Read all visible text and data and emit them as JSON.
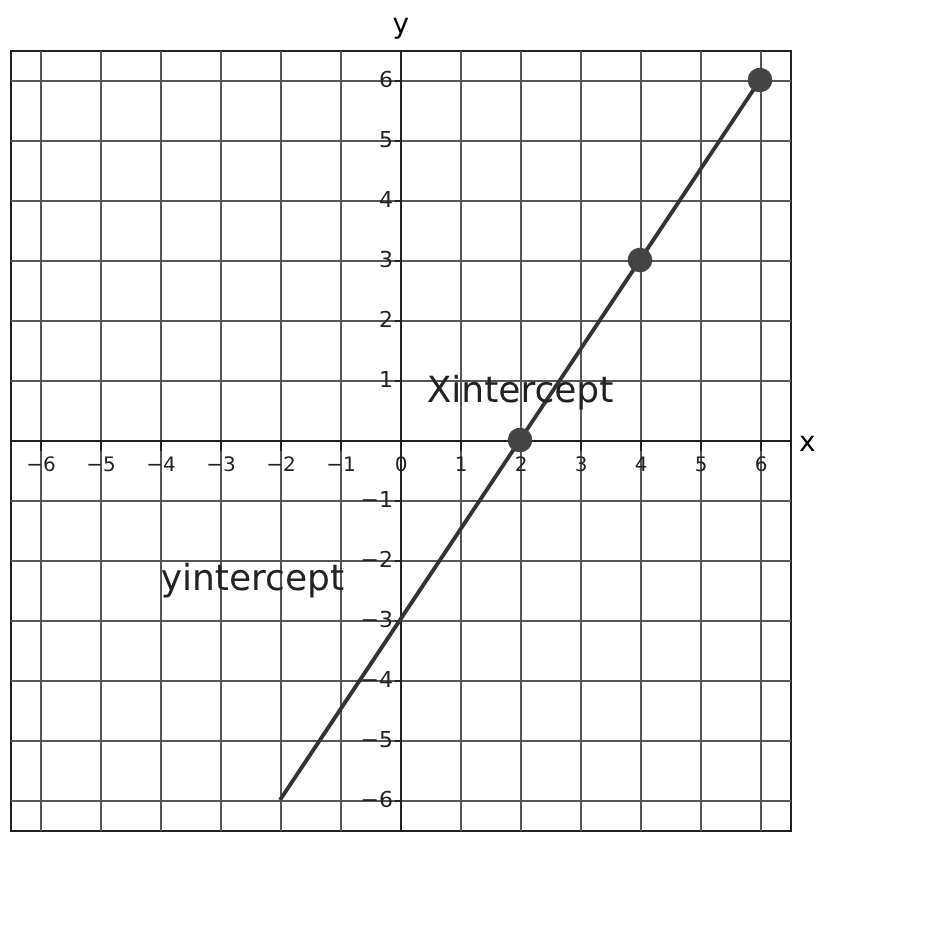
{
  "chart_data": {
    "type": "line",
    "xlabel": "x",
    "ylabel": "y",
    "xlim": [
      -6.5,
      6.5
    ],
    "ylim": [
      -6.5,
      6.5
    ],
    "xticks": [
      -6,
      -5,
      -4,
      -3,
      -2,
      -1,
      0,
      1,
      2,
      3,
      4,
      5,
      6
    ],
    "yticks": [
      -6,
      -5,
      -4,
      -3,
      -2,
      -1,
      {
        "value": 0,
        "label": null
      },
      1,
      2,
      3,
      4,
      5,
      6
    ],
    "grid": true,
    "line_style": "solid",
    "series": [
      {
        "color": "#333333",
        "x": [
          -2,
          6
        ],
        "values": [
          -6,
          6
        ],
        "marker": "none"
      },
      {
        "type": "scatter",
        "color": "#444444",
        "x": [
          2,
          4,
          6
        ],
        "values": [
          0,
          3,
          6
        ],
        "marker": "circle"
      }
    ],
    "annotations": [
      {
        "text": "Xintercept",
        "x": 2,
        "y": 0
      },
      {
        "text": "yintercept",
        "x": 0,
        "y": -3
      }
    ]
  }
}
